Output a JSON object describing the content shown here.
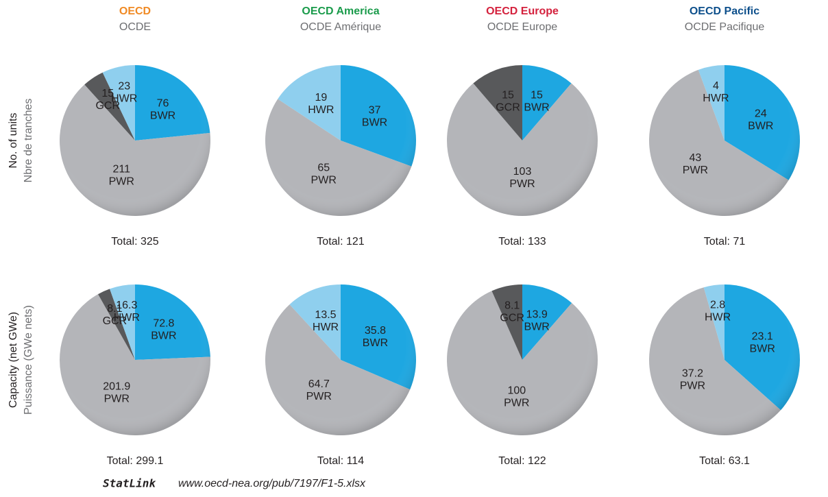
{
  "columns": [
    {
      "title": "OECD",
      "subtitle": "OCDE",
      "color": "#f08a24"
    },
    {
      "title": "OECD America",
      "subtitle": "OCDE Amérique",
      "color": "#1a9b4b"
    },
    {
      "title": "OECD Europe",
      "subtitle": "OCDE Europe",
      "color": "#d4213d"
    },
    {
      "title": "OECD Pacific",
      "subtitle": "OCDE Pacifique",
      "color": "#0d4f8b"
    }
  ],
  "rows": [
    {
      "label": "No. of units",
      "sublabel": "Nbre de tranches"
    },
    {
      "label": "Capacity (net GWe)",
      "sublabel": "Puissance (GWe nets)"
    }
  ],
  "chart_data": [
    {
      "type": "pie",
      "categories": [
        "BWR",
        "PWR",
        "GCR",
        "HWR"
      ],
      "values": [
        76,
        211,
        15,
        23
      ],
      "colors": [
        "#1ea7e1",
        "#b4b5b9",
        "#58595b",
        "#8fcfee"
      ],
      "total": "Total: 325"
    },
    {
      "type": "pie",
      "categories": [
        "BWR",
        "PWR",
        "HWR"
      ],
      "values": [
        37,
        65,
        19
      ],
      "colors": [
        "#1ea7e1",
        "#b4b5b9",
        "#8fcfee"
      ],
      "total": "Total: 121"
    },
    {
      "type": "pie",
      "categories": [
        "BWR",
        "PWR",
        "GCR"
      ],
      "values": [
        15,
        103,
        15
      ],
      "colors": [
        "#1ea7e1",
        "#b4b5b9",
        "#58595b"
      ],
      "total": "Total: 133"
    },
    {
      "type": "pie",
      "categories": [
        "BWR",
        "PWR",
        "HWR"
      ],
      "values": [
        24,
        43,
        4
      ],
      "colors": [
        "#1ea7e1",
        "#b4b5b9",
        "#8fcfee"
      ],
      "total": "Total: 71"
    },
    {
      "type": "pie",
      "categories": [
        "BWR",
        "PWR",
        "GCR",
        "HWR"
      ],
      "values": [
        72.8,
        201.9,
        8.1,
        16.3
      ],
      "colors": [
        "#1ea7e1",
        "#b4b5b9",
        "#58595b",
        "#8fcfee"
      ],
      "total": "Total: 299.1"
    },
    {
      "type": "pie",
      "categories": [
        "BWR",
        "PWR",
        "HWR"
      ],
      "values": [
        35.8,
        64.7,
        13.5
      ],
      "colors": [
        "#1ea7e1",
        "#b4b5b9",
        "#8fcfee"
      ],
      "total": "Total: 114"
    },
    {
      "type": "pie",
      "categories": [
        "BWR",
        "PWR",
        "GCR"
      ],
      "values": [
        13.9,
        100,
        8.1
      ],
      "colors": [
        "#1ea7e1",
        "#b4b5b9",
        "#58595b"
      ],
      "total": "Total: 122"
    },
    {
      "type": "pie",
      "categories": [
        "BWR",
        "PWR",
        "HWR"
      ],
      "values": [
        23.1,
        37.2,
        2.8
      ],
      "colors": [
        "#1ea7e1",
        "#b4b5b9",
        "#8fcfee"
      ],
      "total": "Total: 63.1"
    }
  ],
  "footer": {
    "brand": "StatLink",
    "url": "www.oecd-nea.org/pub/7197/F1-5.xlsx"
  }
}
